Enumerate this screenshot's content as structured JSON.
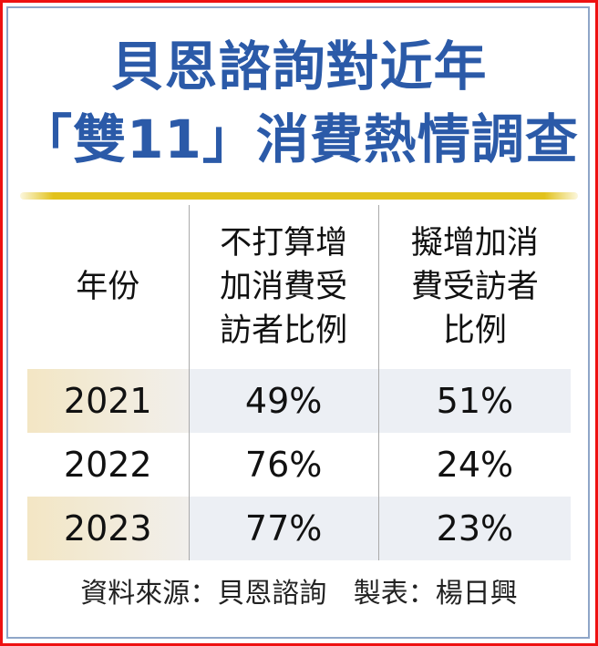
{
  "title": {
    "line1": "貝恩諮詢對近年",
    "line2": "「雙11」消費熱情調查"
  },
  "colors": {
    "title": "#2b5aa8",
    "rule": "#e2c21c",
    "border": "#ee1111",
    "row_shade": "#eceff4"
  },
  "chart_data": {
    "type": "table",
    "columns": [
      "年份",
      "不打算增加消費受訪者比例",
      "擬增加消費受訪者比例"
    ],
    "header_lines": [
      [
        "年份"
      ],
      [
        "不打算增",
        "加消費受",
        "訪者比例"
      ],
      [
        "擬增加消",
        "費受訪者",
        "比例"
      ]
    ],
    "rows": [
      [
        "2021",
        "49%",
        "51%"
      ],
      [
        "2022",
        "76%",
        "24%"
      ],
      [
        "2023",
        "77%",
        "23%"
      ]
    ]
  },
  "footer": {
    "source": "資料來源：貝恩諮詢",
    "credit": "製表：楊日興"
  }
}
